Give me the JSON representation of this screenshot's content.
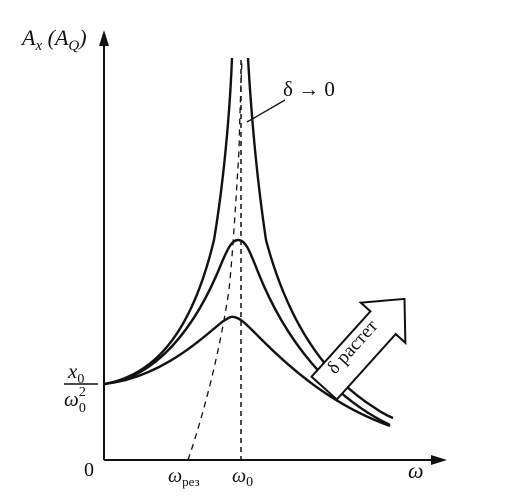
{
  "figure": {
    "y_axis_label_main": "A",
    "y_axis_label_sub": "x",
    "y_axis_label_paren_open": " (A",
    "y_axis_label_paren_sub": "Q",
    "y_axis_label_paren_close": ")",
    "x_axis_label": "ω",
    "origin_label": "0",
    "y_tick_numerator_main": "x",
    "y_tick_numerator_sub": "0",
    "y_tick_denominator_main": "ω",
    "y_tick_denominator_sub": "0",
    "y_tick_denominator_sup": "2",
    "x_tick_res_main": "ω",
    "x_tick_res_sub": "рез",
    "x_tick_0_main": "ω",
    "x_tick_0_sub": "0",
    "annotation_delta_zero": "δ → 0",
    "annotation_delta_grows": "δ растет"
  },
  "colors": {
    "ink": "#111111",
    "background": "#ffffff"
  }
}
